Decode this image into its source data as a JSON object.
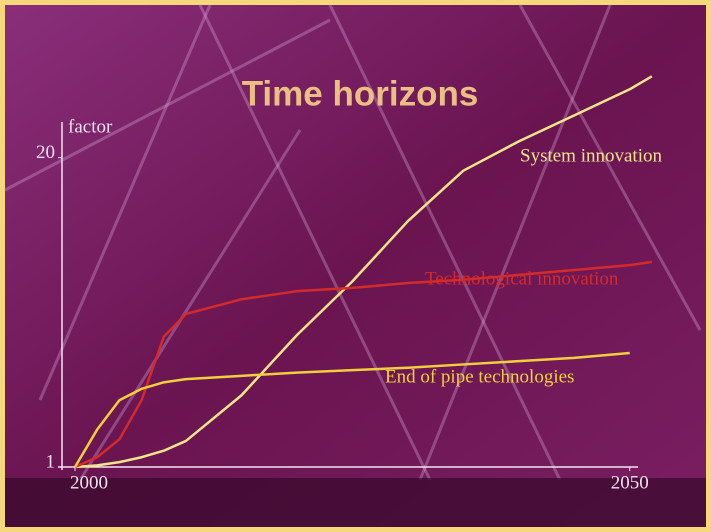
{
  "chart_data": {
    "type": "line",
    "title": "Time horizons",
    "y_label": "factor",
    "x": [
      2000,
      2002,
      2004,
      2006,
      2008,
      2010,
      2015,
      2020,
      2025,
      2030,
      2035,
      2040,
      2045,
      2050,
      2052
    ],
    "series": [
      {
        "name": "System innovation",
        "color": "#f4e58a",
        "values": [
          1,
          1.1,
          1.3,
          1.6,
          2.0,
          2.6,
          5.4,
          9.1,
          12.4,
          16.1,
          19.2,
          21.0,
          22.6,
          24.2,
          25.0
        ]
      },
      {
        "name": "Technological innovation",
        "color": "#d42a2a",
        "values": [
          1,
          1.6,
          2.7,
          5.1,
          9.0,
          10.4,
          11.3,
          11.8,
          12.0,
          12.3,
          12.5,
          12.8,
          13.1,
          13.4,
          13.6
        ]
      },
      {
        "name": "End of pipe technologies",
        "color": "#f0cf3c",
        "values": [
          1,
          3.3,
          5.1,
          5.8,
          6.2,
          6.4,
          6.6,
          6.8,
          6.95,
          7.1,
          7.3,
          7.5,
          7.7,
          8.0,
          null
        ]
      }
    ],
    "xlim": [
      2000,
      2053
    ],
    "ylim": [
      1,
      26
    ],
    "xticks": [
      2000,
      2050
    ],
    "yticks": [
      1,
      20
    ]
  }
}
